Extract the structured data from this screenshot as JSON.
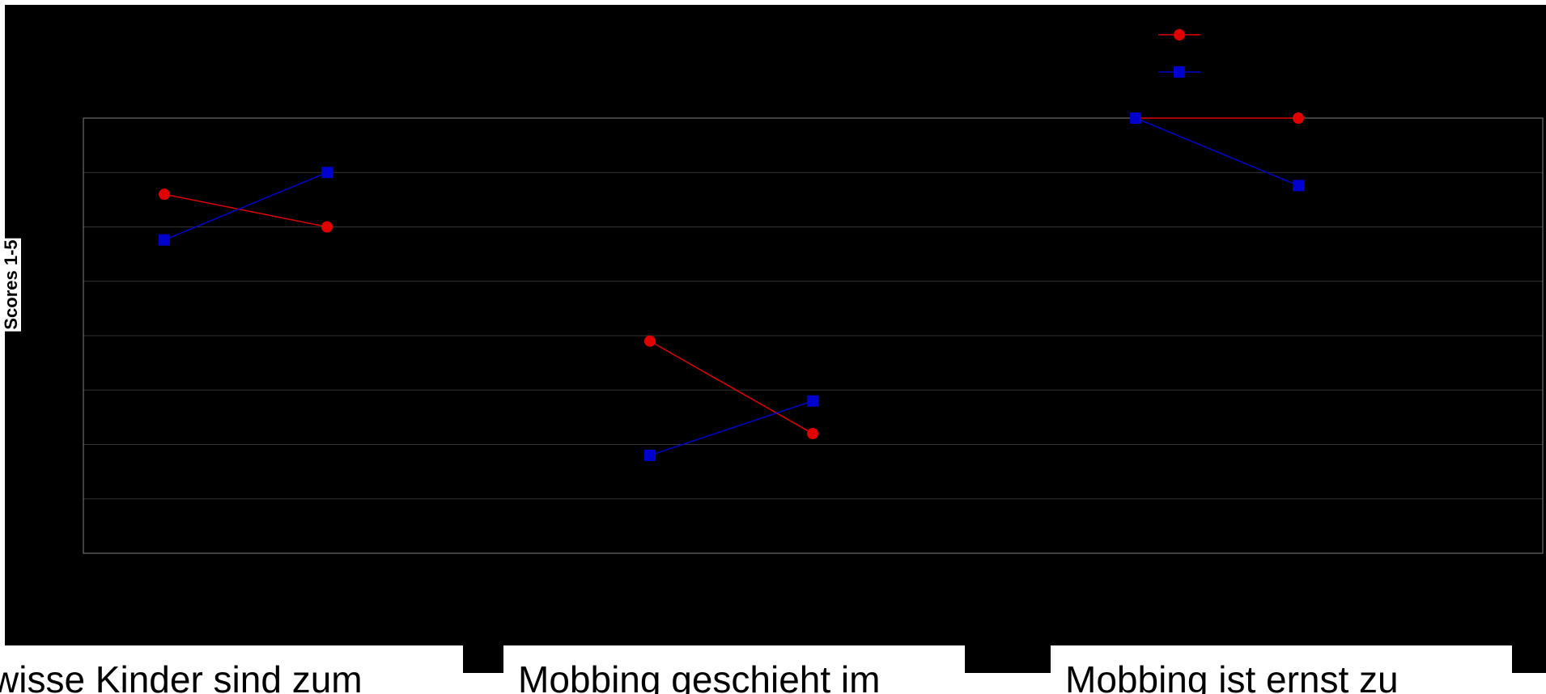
{
  "chart_data": {
    "type": "line",
    "title": "",
    "xlabel": "",
    "ylabel": "Scores 1-5",
    "ylim": [
      1,
      5
    ],
    "grid": true,
    "legend_placement": "top-center",
    "categories": [
      "wisse Kinder sind zum",
      "Mobbing geschieht im",
      "Mobbing ist ernst zu"
    ],
    "series": [
      {
        "color": "#e00000",
        "marker": "circle",
        "values": [
          [
            4.3,
            4.0
          ],
          [
            2.95,
            2.1
          ],
          [
            5.0,
            5.0
          ]
        ]
      },
      {
        "color": "#0000cc",
        "marker": "square",
        "values": [
          [
            3.88,
            4.5
          ],
          [
            1.9,
            2.4
          ],
          [
            5.0,
            4.38
          ]
        ]
      }
    ]
  },
  "colors": {
    "background": "#000000",
    "gridline": "#333333",
    "plot_border": "#808080",
    "label_box": "#ffffff"
  }
}
